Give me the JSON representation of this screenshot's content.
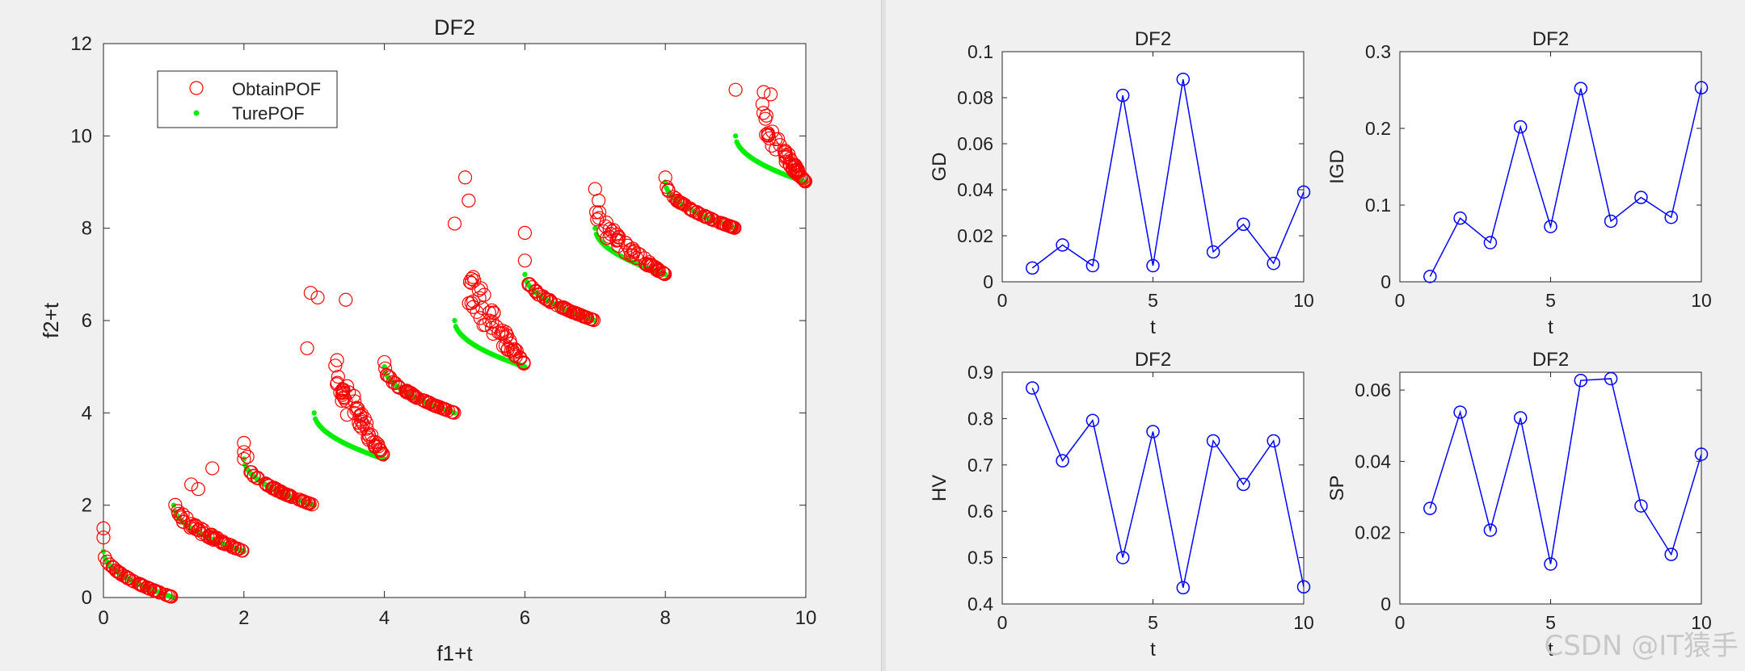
{
  "watermark": "CSDN @IT猿手",
  "colors": {
    "obtain": "#ff0000",
    "true": "#00ee00",
    "line": "#0000ff"
  },
  "chart_data": [
    {
      "type": "scatter",
      "title": "DF2",
      "xlabel": "f1+t",
      "ylabel": "f2+t",
      "xlim": [
        0,
        10
      ],
      "ylim": [
        0,
        12
      ],
      "xticks": [
        0,
        2,
        4,
        6,
        8,
        10
      ],
      "yticks": [
        0,
        2,
        4,
        6,
        8,
        10,
        12
      ],
      "legend": {
        "position": "top-left",
        "entries": [
          "ObtainPOF",
          "TurePOF"
        ]
      },
      "fronts": [
        {
          "t": 0,
          "obtain_outliers": [
            [
              0,
              1.5
            ],
            [
              0,
              1.3
            ]
          ]
        },
        {
          "t": 1,
          "obtain_outliers": [
            [
              1.55,
              2.8
            ],
            [
              1.25,
              2.45
            ],
            [
              1.35,
              2.35
            ]
          ]
        },
        {
          "t": 2,
          "obtain_outliers": [
            [
              2,
              3.35
            ],
            [
              2,
              3.15
            ],
            [
              2.05,
              3.05
            ]
          ]
        },
        {
          "t": 3,
          "obtain_outliers": [
            [
              2.95,
              6.6
            ],
            [
              3.05,
              6.5
            ],
            [
              3.45,
              6.45
            ],
            [
              2.9,
              5.4
            ]
          ]
        },
        {
          "t": 4,
          "obtain_outliers": [
            [
              4,
              5.1
            ]
          ]
        },
        {
          "t": 5,
          "obtain_outliers": [
            [
              5.15,
              9.1
            ],
            [
              5.0,
              8.1
            ],
            [
              5.2,
              8.6
            ]
          ]
        },
        {
          "t": 6,
          "obtain_outliers": [
            [
              6,
              7.9
            ],
            [
              6,
              7.3
            ]
          ]
        },
        {
          "t": 7,
          "obtain_outliers": [
            [
              7,
              8.85
            ],
            [
              7.05,
              8.6
            ]
          ]
        },
        {
          "t": 8,
          "obtain_outliers": [
            [
              8,
              9.1
            ]
          ]
        },
        {
          "t": 9,
          "obtain_outliers": [
            [
              9,
              11
            ],
            [
              9.4,
              10.95
            ],
            [
              9.5,
              10.9
            ]
          ]
        }
      ]
    },
    {
      "type": "line",
      "title": "DF2",
      "xlabel": "t",
      "ylabel": "GD",
      "xlim": [
        0,
        10
      ],
      "ylim": [
        0,
        0.1
      ],
      "xticks": [
        "0",
        "5",
        "10"
      ],
      "yticks": [
        "0",
        "0.02",
        "0.04",
        "0.06",
        "0.08",
        "0.1"
      ],
      "x": [
        1,
        2,
        3,
        4,
        5,
        6,
        7,
        8,
        9,
        10
      ],
      "y": [
        0.006,
        0.016,
        0.007,
        0.081,
        0.007,
        0.088,
        0.013,
        0.025,
        0.008,
        0.039
      ]
    },
    {
      "type": "line",
      "title": "DF2",
      "xlabel": "t",
      "ylabel": "IGD",
      "xlim": [
        0,
        10
      ],
      "ylim": [
        0,
        0.3
      ],
      "xticks": [
        "0",
        "5",
        "10"
      ],
      "yticks": [
        "0",
        "0.1",
        "0.2",
        "0.3"
      ],
      "x": [
        1,
        2,
        3,
        4,
        5,
        6,
        7,
        8,
        9,
        10
      ],
      "y": [
        0.007,
        0.083,
        0.051,
        0.202,
        0.072,
        0.252,
        0.079,
        0.11,
        0.084,
        0.253
      ]
    },
    {
      "type": "line",
      "title": "DF2",
      "xlabel": "t",
      "ylabel": "HV",
      "xlim": [
        0,
        10
      ],
      "ylim": [
        0.4,
        0.9
      ],
      "xticks": [
        "0",
        "5",
        "10"
      ],
      "yticks": [
        "0.4",
        "0.5",
        "0.6",
        "0.7",
        "0.8",
        "0.9"
      ],
      "x": [
        1,
        2,
        3,
        4,
        5,
        6,
        7,
        8,
        9,
        10
      ],
      "y": [
        0.866,
        0.709,
        0.796,
        0.5,
        0.772,
        0.435,
        0.752,
        0.658,
        0.752,
        0.437
      ]
    },
    {
      "type": "line",
      "title": "DF2",
      "xlabel": "t",
      "ylabel": "SP",
      "xlim": [
        0,
        10
      ],
      "ylim": [
        0,
        0.065
      ],
      "xticks": [
        "0",
        "5",
        "10"
      ],
      "yticks": [
        "0",
        "0.02",
        "0.04",
        "0.06"
      ],
      "x": [
        1,
        2,
        3,
        4,
        5,
        6,
        7,
        8,
        9,
        10
      ],
      "y": [
        0.0268,
        0.0538,
        0.0207,
        0.0522,
        0.0112,
        0.0627,
        0.0632,
        0.0275,
        0.0139,
        0.042
      ]
    }
  ]
}
